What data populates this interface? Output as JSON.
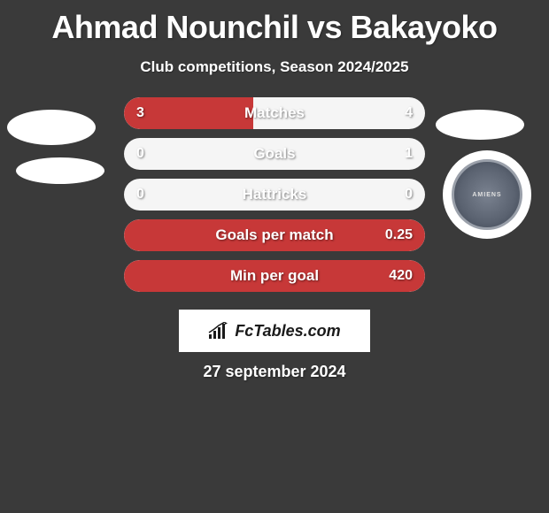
{
  "title": "Ahmad Nounchil vs Bakayoko",
  "subtitle": "Club competitions, Season 2024/2025",
  "footer_logo_text": "FcTables.com",
  "date": "27 september 2024",
  "colors": {
    "background": "#3a3a3a",
    "bar_fill": "#c73838",
    "bar_bg": "#f5f5f5",
    "text": "#ffffff"
  },
  "stats": [
    {
      "label": "Matches",
      "left_val": "3",
      "right_val": "4",
      "left_pct": 43,
      "right_pct": 0
    },
    {
      "label": "Goals",
      "left_val": "0",
      "right_val": "1",
      "left_pct": 0,
      "right_pct": 0
    },
    {
      "label": "Hattricks",
      "left_val": "0",
      "right_val": "0",
      "left_pct": 0,
      "right_pct": 0
    },
    {
      "label": "Goals per match",
      "left_val": "",
      "right_val": "0.25",
      "left_pct": 100,
      "left_full": true,
      "right_pct": 0
    },
    {
      "label": "Min per goal",
      "left_val": "",
      "right_val": "420",
      "left_pct": 100,
      "left_full": true,
      "right_pct": 0
    }
  ],
  "badge_text": "AMIENS"
}
